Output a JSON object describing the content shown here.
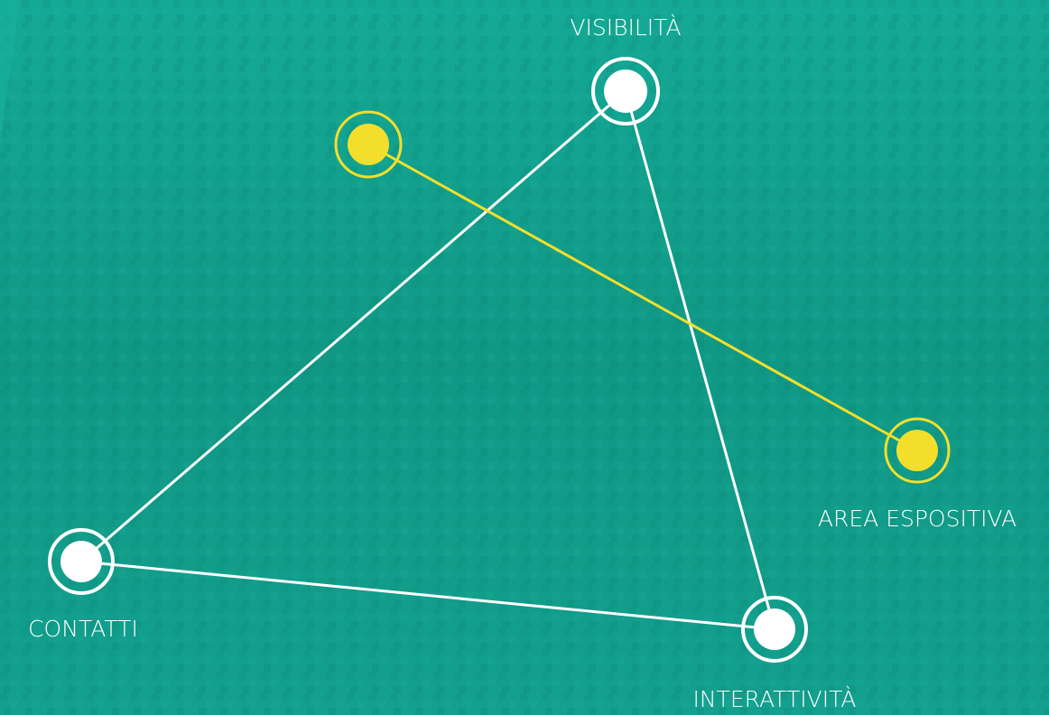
{
  "nodes": [
    {
      "label": "VISIBILITÀ"
    },
    {
      "label": "CONTATTI"
    },
    {
      "label": "INTERATTIVITÀ"
    },
    {
      "label": "AREA ESPOSITIVA"
    }
  ]
}
